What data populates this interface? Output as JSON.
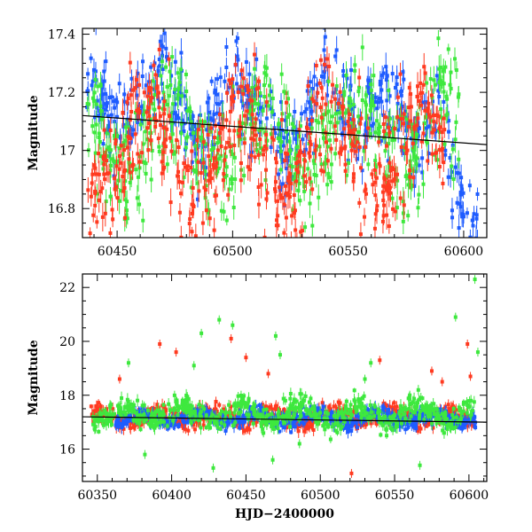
{
  "colors": {
    "blue": "#1f5cff",
    "green": "#3ee83e",
    "red": "#ff3a20",
    "trend": "#000000"
  },
  "chart_data": [
    {
      "type": "scatter",
      "title": "",
      "xlabel": "",
      "ylabel": "Magnitude",
      "xlim": [
        60435,
        60610
      ],
      "ylim": [
        17.42,
        16.7
      ],
      "y_inverted": true,
      "x_ticks": [
        60450,
        60500,
        60550,
        60600
      ],
      "y_ticks": [
        16.8,
        17,
        17.2,
        17.4
      ],
      "x_tick_labels": [
        "60450",
        "60500",
        "60550",
        "60600"
      ],
      "y_tick_labels": [
        "16.8",
        "17",
        "17.2",
        "17.4"
      ],
      "grid": false,
      "error_bars": true,
      "series": [
        {
          "color": "blue",
          "x_range": [
            60437,
            60606
          ],
          "center": 17.12,
          "spread": 0.16,
          "segments": [
            [
              60437,
              17.3
            ],
            [
              60450,
              17.05
            ],
            [
              60470,
              17.28
            ],
            [
              60485,
              17.0
            ],
            [
              60500,
              17.25
            ],
            [
              60515,
              17.08
            ],
            [
              60525,
              16.92
            ],
            [
              60540,
              17.28
            ],
            [
              60555,
              17.05
            ],
            [
              60565,
              17.22
            ],
            [
              60580,
              17.02
            ],
            [
              60590,
              17.2
            ],
            [
              60595,
              16.88
            ],
            [
              60600,
              16.82
            ],
            [
              60606,
              16.72
            ]
          ]
        },
        {
          "color": "green",
          "x_range": [
            60437,
            60598
          ],
          "center": 17.05,
          "spread": 0.2
        },
        {
          "color": "red",
          "x_range": [
            60437,
            60592
          ],
          "center": 17.0,
          "spread": 0.22
        }
      ],
      "trend_line": [
        [
          60435,
          17.12
        ],
        [
          60610,
          17.02
        ]
      ]
    },
    {
      "type": "scatter",
      "title": "",
      "xlabel": "HJD−2400000",
      "ylabel": "Magnitude",
      "xlim": [
        60340,
        60612
      ],
      "ylim": [
        22.5,
        14.8
      ],
      "y_inverted": true,
      "x_ticks": [
        60350,
        60400,
        60450,
        60500,
        60550,
        60600
      ],
      "y_ticks": [
        16,
        18,
        20,
        22
      ],
      "x_tick_labels": [
        "60350",
        "60400",
        "60450",
        "60500",
        "60550",
        "60600"
      ],
      "y_tick_labels": [
        "16",
        "18",
        "20",
        "22"
      ],
      "grid": false,
      "error_bars": true,
      "series": [
        {
          "color": "red",
          "x_range": [
            60345,
            60605
          ],
          "center": 17.2,
          "spread": 0.35
        },
        {
          "color": "blue",
          "x_range": [
            60362,
            60606
          ],
          "center": 17.15,
          "spread": 0.3
        },
        {
          "color": "green",
          "x_range": [
            60345,
            60605
          ],
          "center": 17.3,
          "spread": 0.5
        }
      ],
      "outliers": {
        "green": [
          [
            60371,
            19.2
          ],
          [
            60382,
            15.8
          ],
          [
            60388,
            16.8
          ],
          [
            60415,
            19.1
          ],
          [
            60420,
            20.3
          ],
          [
            60428,
            15.3
          ],
          [
            60432,
            20.8
          ],
          [
            60441,
            20.6
          ],
          [
            60468,
            15.6
          ],
          [
            60470,
            20.2
          ],
          [
            60473,
            19.5
          ],
          [
            60486,
            16.2
          ],
          [
            60530,
            18.6
          ],
          [
            60534,
            19.2
          ],
          [
            60567,
            15.4
          ],
          [
            60591,
            20.9
          ],
          [
            60604,
            22.3
          ],
          [
            60606,
            19.6
          ]
        ],
        "red": [
          [
            60365,
            18.6
          ],
          [
            60392,
            19.9
          ],
          [
            60403,
            19.6
          ],
          [
            60440,
            20.1
          ],
          [
            60450,
            19.4
          ],
          [
            60465,
            18.8
          ],
          [
            60521,
            15.1
          ],
          [
            60540,
            19.3
          ],
          [
            60575,
            18.9
          ],
          [
            60582,
            18.5
          ],
          [
            60599,
            19.9
          ],
          [
            60601,
            18.7
          ]
        ]
      },
      "trend_line": [
        [
          60340,
          17.2
        ],
        [
          60612,
          17.0
        ]
      ]
    }
  ]
}
